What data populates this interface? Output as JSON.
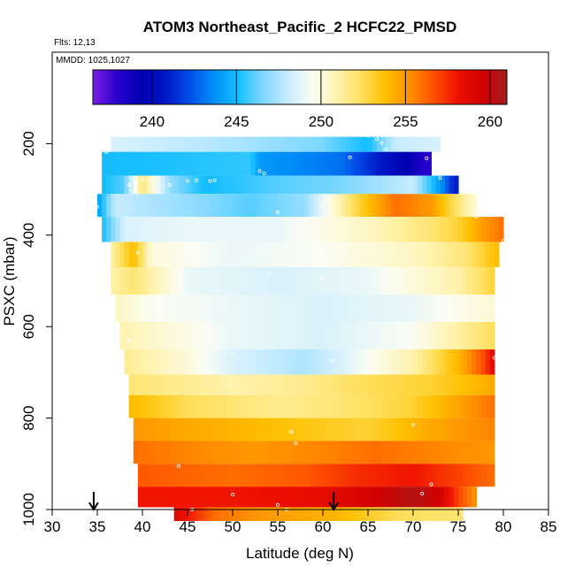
{
  "chart_data": {
    "type": "heatmap",
    "title": "ATOM3 Northeast_Pacific_2 HCFC22_PMSD",
    "flights_label": "Flts: 12,13",
    "dates_label": "MMDD: 1025,1027",
    "xlabel": "Latitude (deg N)",
    "ylabel": "PSXC (mbar)",
    "xlim": [
      30,
      85
    ],
    "ylim": [
      1000,
      0
    ],
    "x_ticks": [
      "30",
      "35",
      "40",
      "45",
      "50",
      "55",
      "60",
      "65",
      "70",
      "75",
      "80",
      "85"
    ],
    "y_ticks": [
      "200",
      "400",
      "600",
      "800",
      "1000"
    ],
    "colorbar": {
      "range": [
        236.5,
        261
      ],
      "ticks": [
        "240",
        "245",
        "250",
        "255",
        "260"
      ],
      "colors": [
        "#7b1fe0",
        "#2a00d0",
        "#0000b0",
        "#0018c8",
        "#0050e8",
        "#0090f8",
        "#18c0ff",
        "#80d8ff",
        "#c8ecff",
        "#fbfdf4",
        "#fff3b0",
        "#ffe060",
        "#ffc000",
        "#ff9000",
        "#ff5000",
        "#ee1000",
        "#d00000",
        "#a51e1e"
      ]
    },
    "series": [
      {
        "name": "layer_200",
        "pressure": [
          185,
          218
        ],
        "lat_range": [
          36.5,
          73
        ],
        "values": [
          {
            "lat": 36.5,
            "v": 248.5
          },
          {
            "lat": 50,
            "v": 247.5
          },
          {
            "lat": 60,
            "v": 246.5
          },
          {
            "lat": 65,
            "v": 245
          },
          {
            "lat": 68,
            "v": 248
          },
          {
            "lat": 73,
            "v": 248.5
          }
        ]
      },
      {
        "name": "layer_240",
        "pressure": [
          218,
          270
        ],
        "lat_range": [
          35.5,
          72
        ],
        "values": [
          {
            "lat": 35.5,
            "v": 245
          },
          {
            "lat": 52,
            "v": 245.5
          },
          {
            "lat": 53,
            "v": 244
          },
          {
            "lat": 62,
            "v": 243
          },
          {
            "lat": 66,
            "v": 241
          },
          {
            "lat": 70,
            "v": 239
          },
          {
            "lat": 71.5,
            "v": 238
          }
        ]
      },
      {
        "name": "layer_290",
        "pressure": [
          270,
          310
        ],
        "lat_range": [
          35.5,
          75
        ],
        "values": [
          {
            "lat": 35.5,
            "v": 245
          },
          {
            "lat": 38,
            "v": 246
          },
          {
            "lat": 40,
            "v": 252
          },
          {
            "lat": 43,
            "v": 247
          },
          {
            "lat": 47,
            "v": 245
          },
          {
            "lat": 55,
            "v": 246
          },
          {
            "lat": 62,
            "v": 246.5
          },
          {
            "lat": 70,
            "v": 248
          },
          {
            "lat": 73,
            "v": 244
          },
          {
            "lat": 74.5,
            "v": 241
          }
        ]
      },
      {
        "name": "layer_335",
        "pressure": [
          310,
          360
        ],
        "lat_range": [
          35,
          77
        ],
        "values": [
          {
            "lat": 35,
            "v": 244
          },
          {
            "lat": 37,
            "v": 248
          },
          {
            "lat": 45,
            "v": 247
          },
          {
            "lat": 52,
            "v": 246
          },
          {
            "lat": 58,
            "v": 247
          },
          {
            "lat": 61,
            "v": 250
          },
          {
            "lat": 64,
            "v": 253
          },
          {
            "lat": 68,
            "v": 256
          },
          {
            "lat": 72,
            "v": 255
          },
          {
            "lat": 75,
            "v": 252
          },
          {
            "lat": 77,
            "v": 250
          }
        ]
      },
      {
        "name": "layer_385",
        "pressure": [
          360,
          415
        ],
        "lat_range": [
          35.5,
          80
        ],
        "values": [
          {
            "lat": 35.5,
            "v": 245
          },
          {
            "lat": 38,
            "v": 248.5
          },
          {
            "lat": 45,
            "v": 249
          },
          {
            "lat": 55,
            "v": 249
          },
          {
            "lat": 65,
            "v": 250.5
          },
          {
            "lat": 72,
            "v": 252
          },
          {
            "lat": 75,
            "v": 253
          },
          {
            "lat": 78,
            "v": 255
          },
          {
            "lat": 80,
            "v": 256
          }
        ]
      },
      {
        "name": "layer_440",
        "pressure": [
          415,
          470
        ],
        "lat_range": [
          36.5,
          79.5
        ],
        "values": [
          {
            "lat": 36.5,
            "v": 251
          },
          {
            "lat": 39,
            "v": 254
          },
          {
            "lat": 41,
            "v": 250
          },
          {
            "lat": 50,
            "v": 249
          },
          {
            "lat": 60,
            "v": 249.5
          },
          {
            "lat": 70,
            "v": 250.5
          },
          {
            "lat": 76,
            "v": 252
          },
          {
            "lat": 79.5,
            "v": 254
          }
        ]
      },
      {
        "name": "layer_500",
        "pressure": [
          470,
          530
        ],
        "lat_range": [
          36.5,
          79
        ],
        "values": [
          {
            "lat": 36.5,
            "v": 251
          },
          {
            "lat": 39,
            "v": 252
          },
          {
            "lat": 45,
            "v": 249
          },
          {
            "lat": 55,
            "v": 248.5
          },
          {
            "lat": 65,
            "v": 249
          },
          {
            "lat": 75,
            "v": 251
          },
          {
            "lat": 79,
            "v": 253
          }
        ]
      },
      {
        "name": "layer_560",
        "pressure": [
          530,
          590
        ],
        "lat_range": [
          37,
          79
        ],
        "values": [
          {
            "lat": 37,
            "v": 250.5
          },
          {
            "lat": 41,
            "v": 249.5
          },
          {
            "lat": 50,
            "v": 249
          },
          {
            "lat": 60,
            "v": 248.5
          },
          {
            "lat": 70,
            "v": 249
          },
          {
            "lat": 78,
            "v": 250
          }
        ]
      },
      {
        "name": "layer_620",
        "pressure": [
          590,
          650
        ],
        "lat_range": [
          37.5,
          79
        ],
        "values": [
          {
            "lat": 37.5,
            "v": 251
          },
          {
            "lat": 40,
            "v": 250.5
          },
          {
            "lat": 50,
            "v": 249
          },
          {
            "lat": 60,
            "v": 248.5
          },
          {
            "lat": 70,
            "v": 249.5
          },
          {
            "lat": 76,
            "v": 251.5
          },
          {
            "lat": 79,
            "v": 252.5
          }
        ]
      },
      {
        "name": "layer_680",
        "pressure": [
          650,
          705
        ],
        "lat_range": [
          38,
          79
        ],
        "values": [
          {
            "lat": 38,
            "v": 251.5
          },
          {
            "lat": 45,
            "v": 250
          },
          {
            "lat": 50,
            "v": 248.5
          },
          {
            "lat": 58,
            "v": 247.5
          },
          {
            "lat": 62,
            "v": 248.5
          },
          {
            "lat": 70,
            "v": 251
          },
          {
            "lat": 75,
            "v": 254
          },
          {
            "lat": 78,
            "v": 257
          },
          {
            "lat": 79,
            "v": 259
          }
        ]
      },
      {
        "name": "layer_730",
        "pressure": [
          705,
          750
        ],
        "lat_range": [
          38.5,
          79
        ],
        "values": [
          {
            "lat": 38.5,
            "v": 252
          },
          {
            "lat": 50,
            "v": 251
          },
          {
            "lat": 58,
            "v": 251.5
          },
          {
            "lat": 65,
            "v": 252.5
          },
          {
            "lat": 72,
            "v": 253
          },
          {
            "lat": 79,
            "v": 254.5
          }
        ]
      },
      {
        "name": "layer_775",
        "pressure": [
          750,
          800
        ],
        "lat_range": [
          38.5,
          79
        ],
        "values": [
          {
            "lat": 38.5,
            "v": 254
          },
          {
            "lat": 45,
            "v": 252.5
          },
          {
            "lat": 55,
            "v": 251.5
          },
          {
            "lat": 62,
            "v": 252
          },
          {
            "lat": 70,
            "v": 253
          },
          {
            "lat": 76,
            "v": 255
          },
          {
            "lat": 79,
            "v": 256
          }
        ]
      },
      {
        "name": "layer_825",
        "pressure": [
          800,
          850
        ],
        "lat_range": [
          39,
          79
        ],
        "values": [
          {
            "lat": 39,
            "v": 255
          },
          {
            "lat": 45,
            "v": 254.5
          },
          {
            "lat": 52,
            "v": 254
          },
          {
            "lat": 58,
            "v": 253.5
          },
          {
            "lat": 65,
            "v": 253
          },
          {
            "lat": 72,
            "v": 254.5
          },
          {
            "lat": 79,
            "v": 255.5
          }
        ]
      },
      {
        "name": "layer_875",
        "pressure": [
          850,
          900
        ],
        "lat_range": [
          39,
          79
        ],
        "values": [
          {
            "lat": 39,
            "v": 256
          },
          {
            "lat": 45,
            "v": 255.5
          },
          {
            "lat": 52,
            "v": 255
          },
          {
            "lat": 60,
            "v": 255.5
          },
          {
            "lat": 66,
            "v": 256
          },
          {
            "lat": 72,
            "v": 255.5
          },
          {
            "lat": 79,
            "v": 255
          }
        ]
      },
      {
        "name": "layer_925",
        "pressure": [
          900,
          950
        ],
        "lat_range": [
          39.5,
          79
        ],
        "values": [
          {
            "lat": 39.5,
            "v": 256.5
          },
          {
            "lat": 50,
            "v": 256
          },
          {
            "lat": 58,
            "v": 256.5
          },
          {
            "lat": 64,
            "v": 257.5
          },
          {
            "lat": 70,
            "v": 258
          },
          {
            "lat": 75,
            "v": 257
          },
          {
            "lat": 79,
            "v": 256
          }
        ]
      },
      {
        "name": "layer_970",
        "pressure": [
          950,
          995
        ],
        "lat_range": [
          39.5,
          77
        ],
        "values": [
          {
            "lat": 39.5,
            "v": 258
          },
          {
            "lat": 50,
            "v": 258
          },
          {
            "lat": 60,
            "v": 258.5
          },
          {
            "lat": 66,
            "v": 259.5
          },
          {
            "lat": 70,
            "v": 260.5
          },
          {
            "lat": 73,
            "v": 259.5
          },
          {
            "lat": 75,
            "v": 257
          },
          {
            "lat": 77,
            "v": 255
          }
        ]
      },
      {
        "name": "layer_1010",
        "pressure": [
          995,
          1025
        ],
        "lat_range": [
          43.5,
          75.5
        ],
        "values": [
          {
            "lat": 43.5,
            "v": 259
          },
          {
            "lat": 48,
            "v": 256
          },
          {
            "lat": 53,
            "v": 255
          },
          {
            "lat": 58,
            "v": 254.5
          },
          {
            "lat": 62,
            "v": 254
          },
          {
            "lat": 68,
            "v": 252.5
          },
          {
            "lat": 75.5,
            "v": 252
          }
        ]
      }
    ],
    "sample_points": [
      [
        65,
        182
      ],
      [
        66,
        190
      ],
      [
        66.5,
        198
      ],
      [
        67,
        212
      ],
      [
        36,
        218
      ],
      [
        63,
        230
      ],
      [
        71.5,
        232
      ],
      [
        53,
        260
      ],
      [
        53.5,
        265
      ],
      [
        40,
        278
      ],
      [
        41,
        280
      ],
      [
        45,
        282
      ],
      [
        46,
        280
      ],
      [
        47.5,
        282
      ],
      [
        48,
        280
      ],
      [
        73,
        275
      ],
      [
        43,
        290
      ],
      [
        38.5,
        290
      ],
      [
        35,
        338
      ],
      [
        60,
        335
      ],
      [
        55,
        350
      ],
      [
        59,
        365
      ],
      [
        77,
        360
      ],
      [
        80,
        412
      ],
      [
        39.5,
        438
      ],
      [
        45,
        430
      ],
      [
        54,
        485
      ],
      [
        60,
        495
      ],
      [
        38.5,
        630
      ],
      [
        50,
        660
      ],
      [
        61,
        675
      ],
      [
        79,
        668
      ],
      [
        56.5,
        830
      ],
      [
        70,
        815
      ],
      [
        57,
        855
      ],
      [
        44,
        905
      ],
      [
        72,
        945
      ],
      [
        71,
        965
      ],
      [
        50,
        967
      ],
      [
        55,
        990
      ],
      [
        45.5,
        1000
      ],
      [
        56,
        1000
      ]
    ],
    "markers": [
      {
        "lat": 34.6,
        "label": "arrow"
      },
      {
        "lat": 61.2,
        "label": "arrow"
      }
    ]
  }
}
